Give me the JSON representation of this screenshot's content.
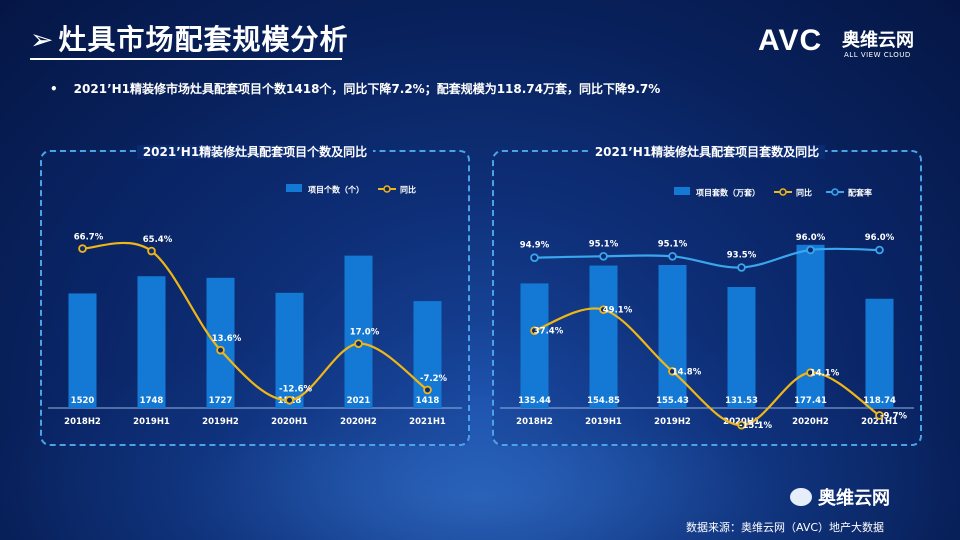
{
  "page": {
    "title": "灶具市场配套规模分析",
    "bullet": "2021’H1精装修市场灶具配套项目个数1418个，同比下降7.2%；配套规模为118.74万套，同比下降9.7%",
    "logo_mark": "AVC",
    "logo_cn": "奥维云网",
    "logo_en": "ALL VIEW CLOUD",
    "wechat_label": "奥维云网",
    "source": "数据来源：奥维云网（AVC）地产大数据"
  },
  "colors": {
    "bar": "#1479d4",
    "yoy": "#f0b616",
    "rate": "#3aa6ee",
    "text": "#ffffff"
  },
  "chart_data": [
    {
      "type": "bar",
      "title": "2021’H1精装修灶具配套项目个数及同比",
      "categories": [
        "2018H2",
        "2019H1",
        "2019H2",
        "2020H1",
        "2020H2",
        "2021H1"
      ],
      "series": [
        {
          "name": "项目个数（个）",
          "kind": "bar",
          "values": [
            1520,
            1748,
            1727,
            1528,
            2021,
            1418
          ],
          "labels": [
            "1520",
            "1748",
            "1727",
            "1528",
            "2021",
            "1418"
          ]
        },
        {
          "name": "同比",
          "kind": "line",
          "values": [
            66.7,
            65.4,
            13.6,
            -12.6,
            17.0,
            -7.2
          ],
          "labels": [
            "66.7%",
            "65.4%",
            "13.6%",
            "-12.6%",
            "17.0%",
            "-7.2%"
          ]
        }
      ],
      "ylim_bar": [
        0,
        2600
      ],
      "ylim_line": [
        -25,
        90
      ],
      "legend": "top-right"
    },
    {
      "type": "bar",
      "title": "2021’H1精装修灶具配套项目套数及同比",
      "categories": [
        "2018H2",
        "2019H1",
        "2019H2",
        "2020H1",
        "2020H2",
        "2021H1"
      ],
      "series": [
        {
          "name": "项目套数（万套）",
          "kind": "bar",
          "values": [
            135.44,
            154.85,
            155.43,
            131.53,
            177.41,
            118.74
          ],
          "labels": [
            "135.44",
            "154.85",
            "155.43",
            "131.53",
            "177.41",
            "118.74"
          ]
        },
        {
          "name": "同比",
          "kind": "line",
          "values": [
            37.4,
            49.1,
            14.8,
            -15.1,
            14.1,
            -9.7
          ],
          "labels": [
            "37.4%",
            "49.1%",
            "14.8%",
            "-15.1%",
            "14.1%",
            "-9.7%"
          ]
        },
        {
          "name": "配套率",
          "kind": "line",
          "values": [
            94.9,
            95.1,
            95.1,
            93.5,
            96.0,
            96.0
          ],
          "labels": [
            "94.9%",
            "95.1%",
            "95.1%",
            "93.5%",
            "96.0%",
            "96.0%"
          ]
        }
      ],
      "ylim_bar": [
        0,
        200
      ],
      "legend": "top-right"
    }
  ]
}
